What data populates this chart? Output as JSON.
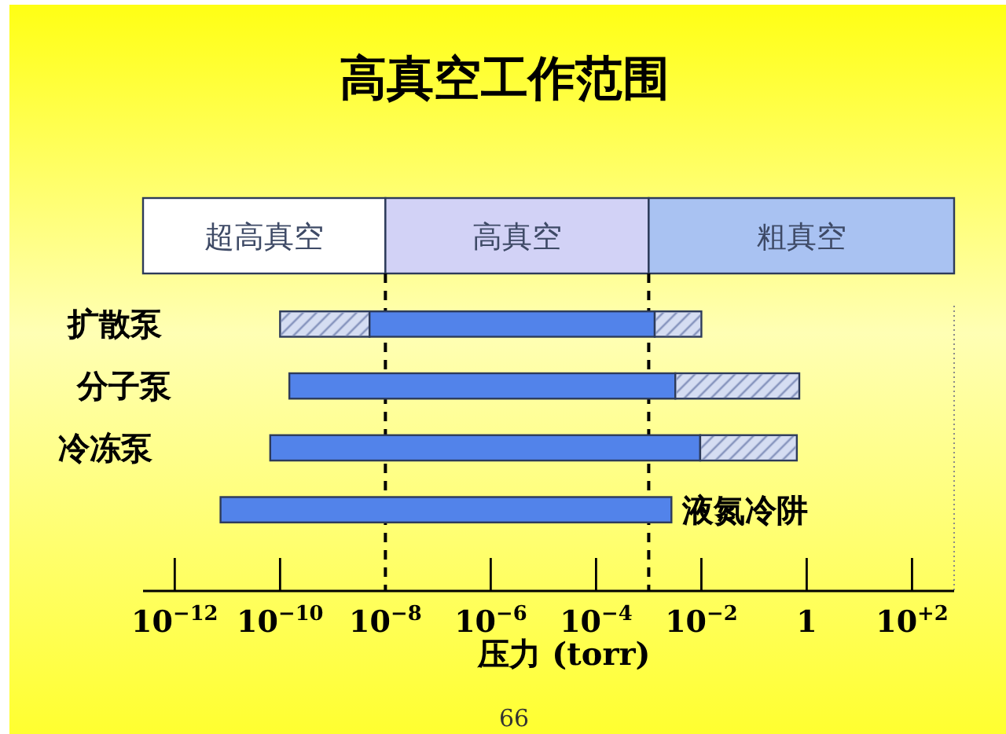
{
  "chart_data": [
    {
      "type": "bar",
      "title": "高真空工作范围",
      "orientation": "horizontal",
      "log": "x",
      "categories": [
        null
      ],
      "series": [
        {
          "name": "超高真空",
          "color": "#ffffff",
          "base": [
            2.5e-13
          ],
          "values": [
            1e-08
          ]
        },
        {
          "name": "高真空",
          "color": "#d2d2f6",
          "base": [
            1e-08
          ],
          "values": [
            0.001
          ]
        },
        {
          "name": "粗真空",
          "color": "#a9c2f2",
          "base": [
            0.001
          ],
          "values": [
            630
          ]
        }
      ],
      "xlim": [
        2.5e-13,
        630
      ],
      "tick_labels": false
    },
    {
      "type": "bar",
      "xlabel": "压力 (torr)",
      "orientation": "horizontal",
      "log": "x",
      "categories": [
        "扩散泵",
        "分子泵",
        "冷冻泵",
        "液氮冷阱"
      ],
      "series": [
        {
          "color": "#d5ddf2",
          "base": [
            1e-10,
            null,
            null,
            null
          ],
          "values": [
            4.9e-09,
            null,
            null,
            null
          ]
        },
        {
          "color": "#5283ea",
          "base": [
            5e-09,
            1.5e-10,
            6.5e-11,
            7.4e-12
          ],
          "values": [
            0.0013,
            0.0032,
            0.0095,
            0.0027
          ]
        },
        {
          "color": "#d5ddf2",
          "base": [
            0.0013,
            0.0032,
            0.0095,
            null
          ],
          "values": [
            0.0087,
            0.72,
            0.64,
            null
          ]
        }
      ],
      "xlim": [
        2.5e-13,
        630
      ],
      "xticks": [
        {
          "value": 1e-12,
          "label": "10$^{−12}$"
        },
        {
          "value": 1e-10,
          "label": "10$^{−10}$"
        },
        {
          "value": 1e-08,
          "label": "10$^{−8}$"
        },
        {
          "value": 1e-06,
          "label": "10$^{−6}$"
        },
        {
          "value": 0.0001,
          "label": "10$^{−4}$"
        },
        {
          "value": 0.01,
          "label": "10$^{−2}$"
        },
        1,
        {
          "value": 100,
          "label": "10$^{+2}$"
        }
      ],
      "ref_lines": [
        {
          "axis": "x",
          "value": 1e-08,
          "line_style": "dashed",
          "color": "#000000"
        },
        {
          "axis": "x",
          "value": 0.001,
          "line_style": "dashed",
          "color": "#000000"
        }
      ],
      "annotations": [
        "66"
      ]
    }
  ]
}
